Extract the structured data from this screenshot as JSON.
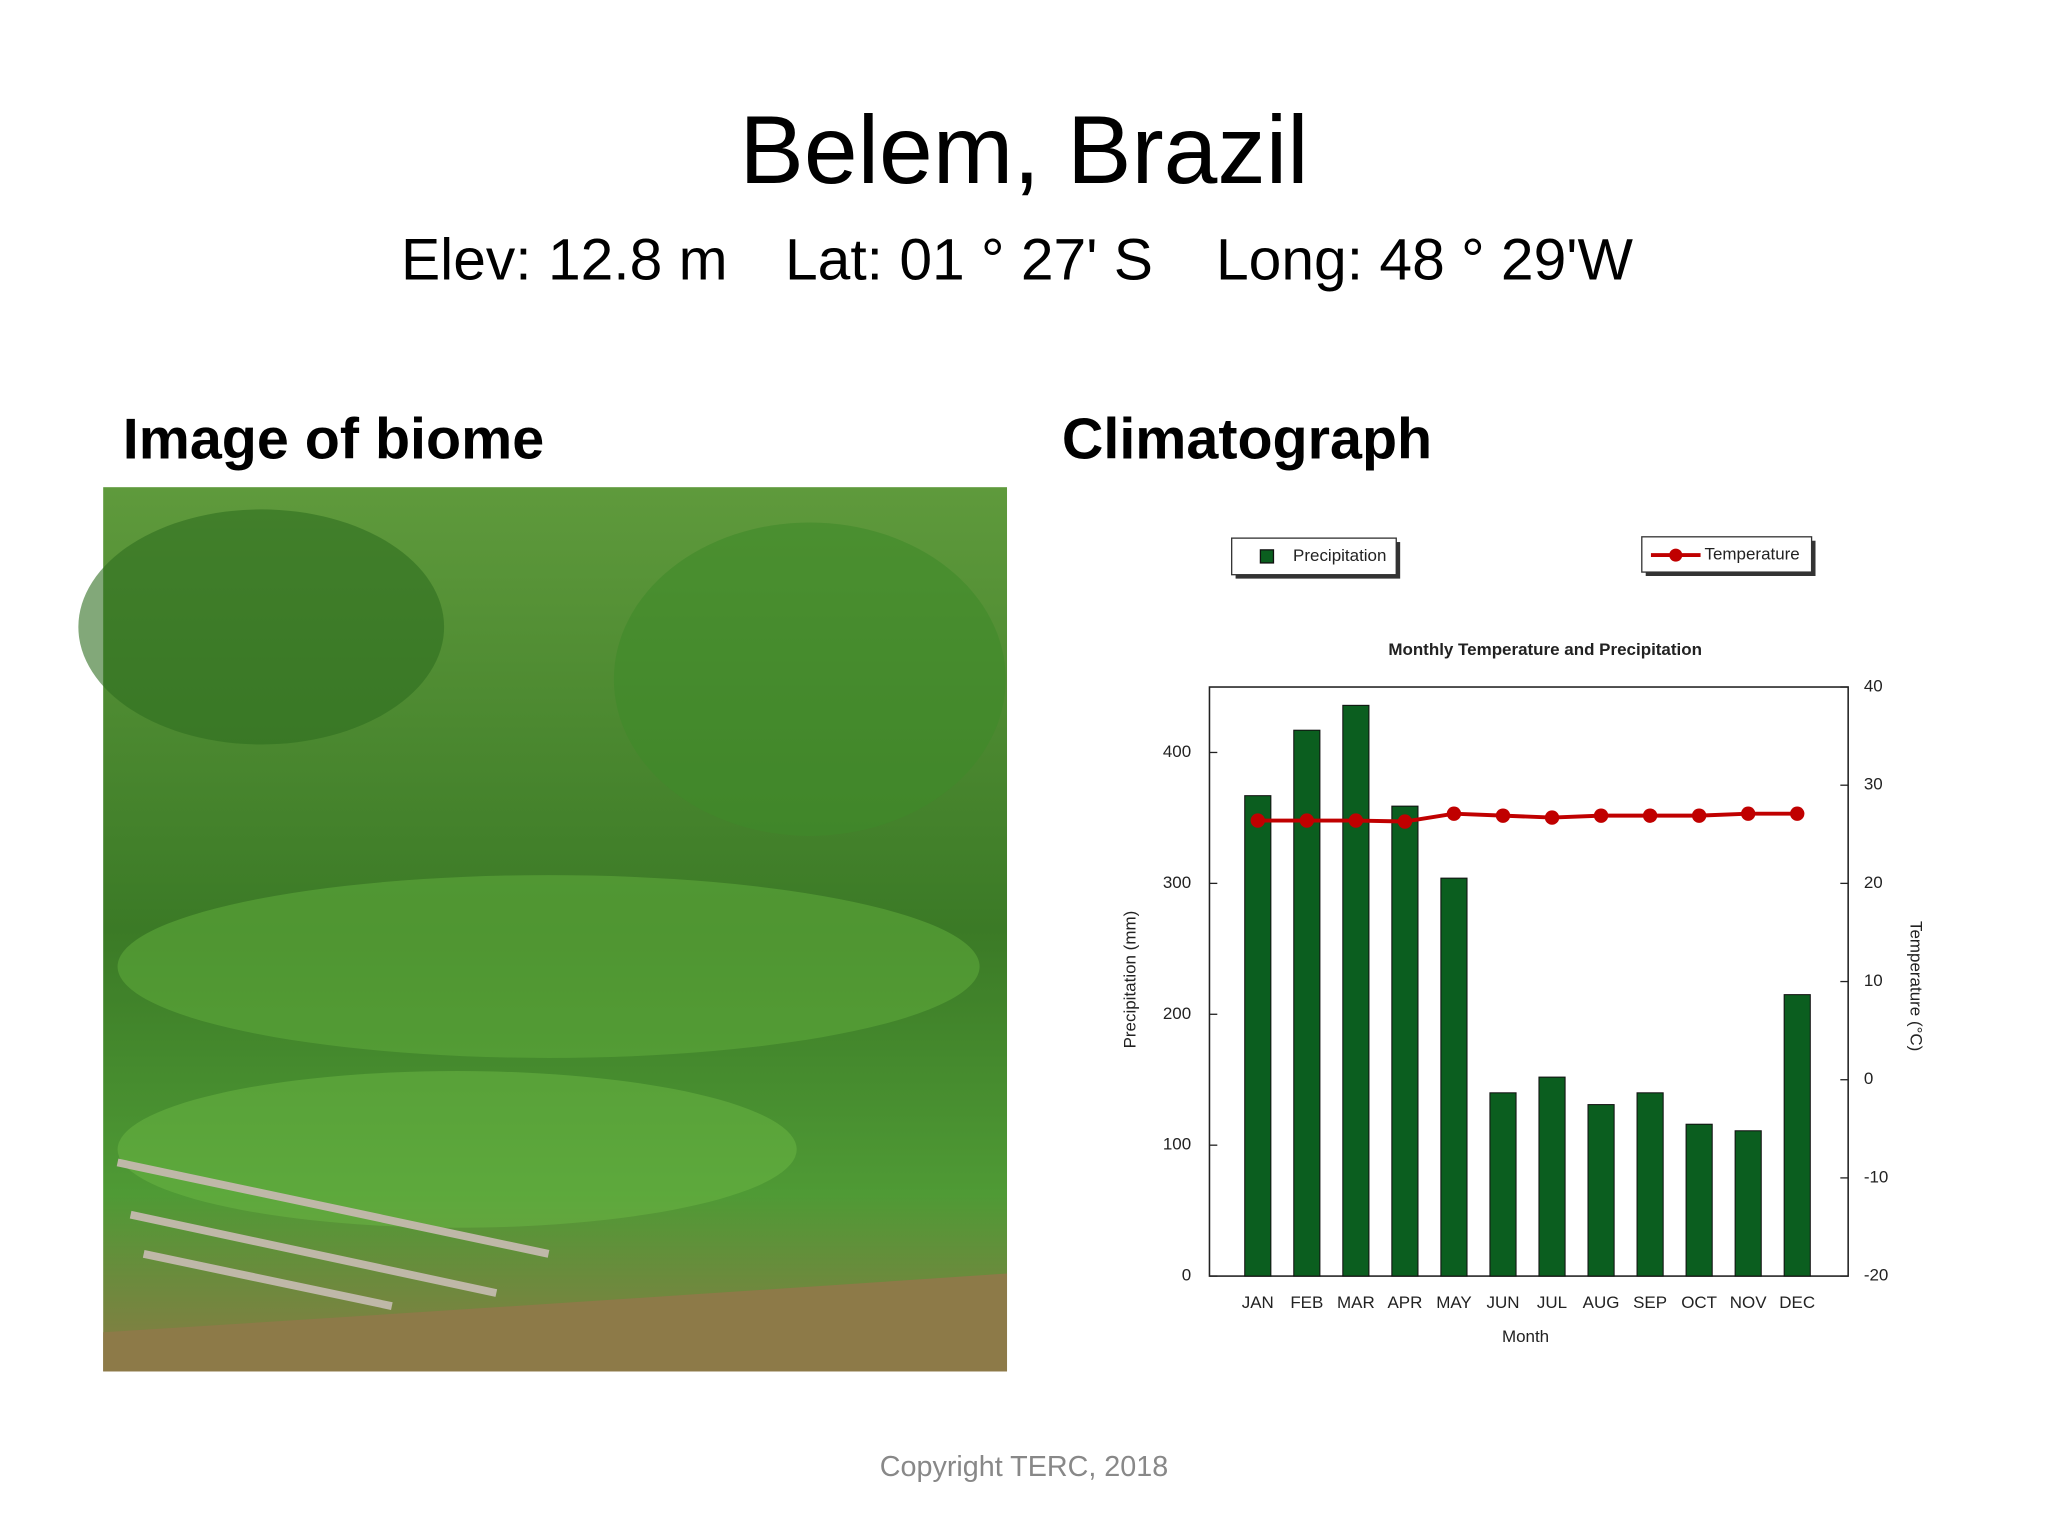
{
  "header": {
    "title": "Belem, Brazil",
    "location": [
      "Elev: 12.8 m",
      "Lat: 01 ° 27' S",
      "Long: 48 ° 29'W"
    ]
  },
  "sections": [
    "Image of biome",
    "Climatograph"
  ],
  "footer": "Copyright TERC, 2018",
  "chart_data": {
    "type": "bar-line",
    "title": "Monthly Temperature and Precipitation",
    "x_label": "Month",
    "y_label": "Precipitation (mm)",
    "y2_label": "Temperature (°C)",
    "categories": [
      "JAN",
      "FEB",
      "MAR",
      "APR",
      "MAY",
      "JUN",
      "JUL",
      "AUG",
      "SEP",
      "OCT",
      "NOV",
      "DEC"
    ],
    "series": [
      {
        "name": "Precipitation",
        "type": "bar",
        "color": "#0b5e1f",
        "values": [
          367,
          417,
          436,
          359,
          304,
          140,
          152,
          131,
          140,
          116,
          111,
          215
        ]
      },
      {
        "name": "Temperature",
        "type": "line",
        "axis": "y2",
        "color": "#c00000",
        "values": [
          26.4,
          26.4,
          26.4,
          26.3,
          27.1,
          26.9,
          26.7,
          26.9,
          26.9,
          26.9,
          27.1,
          27.1
        ]
      }
    ],
    "ylim": [
      0,
      450
    ],
    "yticks": [
      0,
      100,
      200,
      300,
      400
    ],
    "y2lim": [
      -20,
      40
    ],
    "y2ticks": [
      -20,
      -10,
      0,
      10,
      20,
      30,
      40
    ]
  }
}
